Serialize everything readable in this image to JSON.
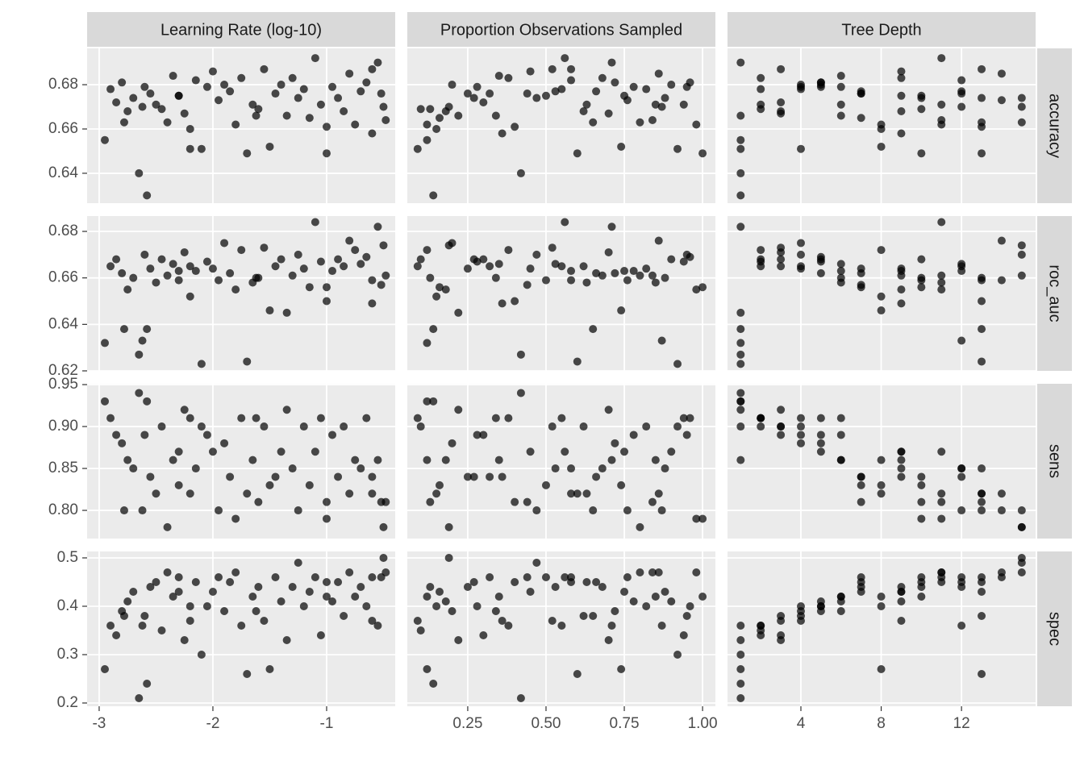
{
  "chart_data": {
    "type": "scatter",
    "color": "#000000",
    "grid": true,
    "columns": [
      {
        "label": "Learning Rate (log-10)",
        "xlim": [
          -3.106,
          -0.397
        ],
        "xticks": [
          -3,
          -2,
          -1
        ],
        "x": [
          -2.95,
          -2.9,
          -2.85,
          -2.8,
          -2.75,
          -2.7,
          -2.65,
          -2.6,
          -2.55,
          -2.5,
          -2.45,
          -2.4,
          -2.35,
          -2.3,
          -2.25,
          -2.2,
          -2.15,
          -2.1,
          -2.05,
          -2.0,
          -1.95,
          -1.9,
          -1.85,
          -1.8,
          -1.75,
          -1.7,
          -1.65,
          -1.6,
          -1.55,
          -1.5,
          -1.45,
          -1.4,
          -1.35,
          -1.3,
          -1.25,
          -1.2,
          -1.15,
          -1.1,
          -1.05,
          -1.0,
          -0.95,
          -0.9,
          -0.85,
          -0.8,
          -0.75,
          -0.7,
          -0.65,
          -0.6,
          -0.55,
          -0.5,
          -0.48,
          -0.52,
          -2.78,
          -2.62,
          -2.2,
          -1.0,
          -2.58,
          -0.6,
          -1.62,
          -2.3
        ]
      },
      {
        "label": "Proportion Observations Sampled",
        "xlim": [
          0.057,
          1.041
        ],
        "xticks": [
          0.25,
          {
            "value": 0.5,
            "label": "0.50"
          },
          0.75,
          {
            "value": 1,
            "label": "1.00"
          }
        ],
        "x": [
          0.12,
          0.55,
          0.3,
          0.72,
          0.18,
          0.88,
          0.42,
          0.95,
          0.25,
          0.63,
          0.1,
          0.8,
          0.35,
          0.5,
          0.7,
          0.15,
          0.58,
          0.92,
          0.28,
          0.45,
          0.76,
          0.2,
          0.66,
          0.98,
          0.38,
          0.6,
          0.85,
          0.13,
          0.52,
          0.74,
          0.32,
          0.9,
          0.22,
          0.68,
          0.47,
          0.82,
          0.16,
          0.56,
          0.94,
          0.4,
          0.78,
          0.27,
          0.62,
          0.86,
          0.12,
          0.53,
          0.96,
          0.36,
          0.71,
          0.19,
          0.84,
          0.44,
          0.65,
          0.87,
          0.09,
          1.0,
          0.14,
          0.58,
          0.34,
          0.75
        ]
      },
      {
        "label": "Tree Depth",
        "xlim": [
          0.345,
          15.69
        ],
        "xticks": [
          4,
          8,
          12
        ],
        "x": [
          1,
          2,
          3,
          5,
          9,
          13,
          1,
          4,
          7,
          11,
          2,
          15,
          6,
          10,
          3,
          8,
          12,
          1,
          5,
          9,
          14,
          4,
          7,
          11,
          2,
          13,
          6,
          10,
          3,
          8,
          12,
          5,
          1,
          9,
          15,
          4,
          7,
          11,
          2,
          13,
          6,
          10,
          3,
          14,
          8,
          12,
          5,
          9,
          1,
          15,
          11,
          7,
          13,
          12,
          4,
          10,
          1,
          13,
          6,
          9
        ]
      }
    ],
    "rows": [
      {
        "label": "accuracy",
        "ylim": [
          0.6265,
          0.6964
        ],
        "yticks": [
          0.64,
          0.66,
          0.68
        ],
        "values": [
          0.655,
          0.678,
          0.672,
          0.681,
          0.668,
          0.674,
          0.64,
          0.679,
          0.676,
          0.671,
          0.669,
          0.663,
          0.684,
          0.675,
          0.667,
          0.66,
          0.682,
          0.651,
          0.679,
          0.686,
          0.673,
          0.68,
          0.677,
          0.662,
          0.683,
          0.649,
          0.671,
          0.669,
          0.687,
          0.652,
          0.676,
          0.68,
          0.666,
          0.683,
          0.674,
          0.678,
          0.665,
          0.692,
          0.671,
          0.661,
          0.679,
          0.674,
          0.668,
          0.685,
          0.662,
          0.677,
          0.681,
          0.658,
          0.69,
          0.67,
          0.664,
          0.676,
          0.663,
          0.67,
          0.651,
          0.649,
          0.63,
          0.687,
          0.666,
          0.675
        ]
      },
      {
        "label": "roc_auc",
        "ylim": [
          0.62,
          0.6866
        ],
        "yticks": [
          0.62,
          0.64,
          0.66,
          0.68
        ],
        "values": [
          0.632,
          0.665,
          0.668,
          0.662,
          0.655,
          0.66,
          0.627,
          0.67,
          0.664,
          0.658,
          0.668,
          0.661,
          0.666,
          0.659,
          0.671,
          0.652,
          0.663,
          0.623,
          0.667,
          0.664,
          0.659,
          0.675,
          0.662,
          0.655,
          0.672,
          0.624,
          0.658,
          0.66,
          0.673,
          0.646,
          0.665,
          0.668,
          0.645,
          0.661,
          0.67,
          0.664,
          0.656,
          0.684,
          0.667,
          0.65,
          0.663,
          0.668,
          0.665,
          0.676,
          0.672,
          0.666,
          0.669,
          0.649,
          0.682,
          0.674,
          0.661,
          0.657,
          0.638,
          0.633,
          0.665,
          0.656,
          0.638,
          0.659,
          0.66,
          0.663
        ]
      },
      {
        "label": "sens",
        "ylim": [
          0.7664,
          0.951
        ],
        "yticks": [
          {
            "value": 0.8,
            "label": "0.80"
          },
          0.85,
          {
            "value": 0.9,
            "label": "0.90"
          },
          0.95
        ],
        "values": [
          0.93,
          0.91,
          0.89,
          0.88,
          0.86,
          0.85,
          0.94,
          0.89,
          0.84,
          0.82,
          0.9,
          0.78,
          0.86,
          0.83,
          0.92,
          0.82,
          0.85,
          0.9,
          0.89,
          0.87,
          0.8,
          0.88,
          0.84,
          0.79,
          0.91,
          0.82,
          0.86,
          0.81,
          0.9,
          0.83,
          0.84,
          0.87,
          0.92,
          0.85,
          0.8,
          0.9,
          0.83,
          0.87,
          0.91,
          0.81,
          0.89,
          0.84,
          0.9,
          0.82,
          0.86,
          0.85,
          0.91,
          0.84,
          0.86,
          0.78,
          0.81,
          0.81,
          0.8,
          0.8,
          0.91,
          0.79,
          0.93,
          0.82,
          0.91,
          0.87
        ]
      },
      {
        "label": "spec",
        "ylim": [
          0.1933,
          0.5133
        ],
        "yticks": [
          0.2,
          0.3,
          0.4,
          0.5
        ],
        "values": [
          0.27,
          0.36,
          0.34,
          0.39,
          0.41,
          0.43,
          0.21,
          0.38,
          0.44,
          0.45,
          0.35,
          0.47,
          0.42,
          0.46,
          0.33,
          0.4,
          0.45,
          0.3,
          0.4,
          0.43,
          0.46,
          0.39,
          0.45,
          0.47,
          0.36,
          0.26,
          0.42,
          0.44,
          0.37,
          0.27,
          0.46,
          0.41,
          0.33,
          0.44,
          0.49,
          0.4,
          0.43,
          0.46,
          0.34,
          0.45,
          0.41,
          0.45,
          0.38,
          0.47,
          0.42,
          0.44,
          0.4,
          0.37,
          0.36,
          0.5,
          0.47,
          0.46,
          0.38,
          0.36,
          0.37,
          0.42,
          0.24,
          0.46,
          0.39,
          0.43
        ]
      }
    ]
  }
}
